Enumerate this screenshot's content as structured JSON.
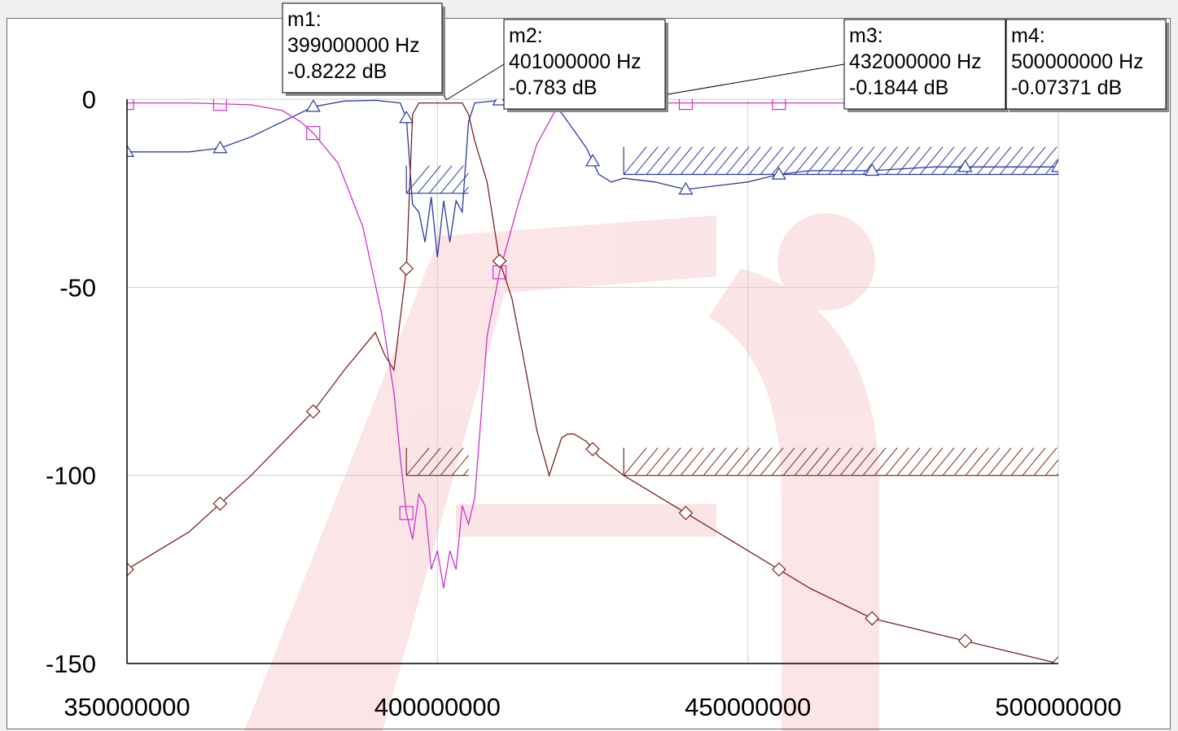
{
  "chart_data": {
    "type": "line",
    "x_unit": "Hz",
    "y_unit": "dB",
    "xlim": [
      350000000,
      500000000
    ],
    "ylim": [
      -150,
      0
    ],
    "xticks": [
      350000000,
      400000000,
      450000000,
      500000000
    ],
    "yticks": [
      0,
      -50,
      -100,
      -150
    ],
    "xtick_labels": [
      "350000000",
      "400000000",
      "450000000",
      "500000000"
    ],
    "ytick_labels": [
      "0",
      "-50",
      "-100",
      "-150"
    ],
    "grid": true,
    "series": [
      {
        "marker": "triangle",
        "color": "#2b3aa0",
        "x": [
          350000000,
          355000000,
          360000000,
          365000000,
          370000000,
          375000000,
          380000000,
          385000000,
          390000000,
          394000000,
          395000000,
          396000000,
          397000000,
          398000000,
          399000000,
          400000000,
          401000000,
          402000000,
          403000000,
          404000000,
          405000000,
          406000000,
          410000000,
          415000000,
          419000000,
          421000000,
          424000000,
          426000000,
          428000000,
          430000000,
          435000000,
          440000000,
          445000000,
          450000000,
          455000000,
          460000000,
          470000000,
          480000000,
          490000000,
          500000000
        ],
        "y": [
          -14,
          -14,
          -14,
          -13,
          -10,
          -6,
          -2,
          -0.5,
          -0.3,
          -1,
          -5,
          -28,
          -30,
          -38,
          -26,
          -42,
          -27,
          -38,
          -27,
          -30,
          -6,
          -1,
          -0.3,
          -0.2,
          -1.5,
          -6,
          -13,
          -20,
          -22,
          -21,
          -22,
          -24,
          -23,
          -22,
          -20,
          -19,
          -19,
          -18,
          -18,
          -18
        ]
      },
      {
        "marker": "square",
        "color": "#cc33cc",
        "x": [
          350000000,
          360000000,
          370000000,
          375000000,
          378000000,
          380000000,
          384000000,
          388000000,
          391000000,
          393000000,
          394000000,
          395000000,
          396000000,
          397000000,
          398000000,
          399000000,
          400000000,
          401000000,
          402000000,
          403000000,
          404000000,
          405000000,
          406000000,
          407000000,
          408000000,
          410000000,
          413000000,
          416000000,
          419000000,
          420000000,
          422000000,
          425000000,
          430000000,
          440000000,
          460000000,
          480000000,
          500000000
        ],
        "y": [
          -1,
          -1,
          -1.5,
          -3,
          -6,
          -9,
          -17,
          -34,
          -57,
          -78,
          -95,
          -110,
          -117,
          -105,
          -108,
          -125,
          -120,
          -130,
          -120,
          -125,
          -108,
          -113,
          -106,
          -85,
          -63,
          -46,
          -28,
          -12,
          -3,
          -1,
          -1,
          -1,
          -1,
          -1,
          -1,
          -1,
          -1
        ]
      },
      {
        "marker": "diamond",
        "color": "#7a2424",
        "x": [
          350000000,
          360000000,
          370000000,
          380000000,
          385000000,
          388000000,
          390000000,
          391500000,
          393000000,
          395000000,
          396000000,
          397000000,
          398000000,
          399000000,
          400000000,
          401000000,
          402000000,
          403000000,
          404000000,
          405000000,
          406000000,
          408000000,
          410000000,
          412000000,
          414000000,
          416000000,
          418000000,
          419000000,
          420000000,
          421000000,
          422000000,
          424000000,
          426000000,
          430000000,
          440000000,
          450000000,
          460000000,
          470000000,
          480000000,
          490000000,
          500000000
        ],
        "y": [
          -125,
          -115,
          -100,
          -83,
          -72,
          -66,
          -62,
          -68,
          -72,
          -45,
          -4,
          -1,
          -1,
          -1,
          -1,
          -1,
          -1,
          -1,
          -1,
          -4,
          -11,
          -22,
          -43,
          -53,
          -70,
          -88,
          -100,
          -95,
          -90,
          -89,
          -89,
          -91,
          -95,
          -100,
          -110,
          -120,
          -130,
          -138,
          -142,
          -146,
          -150
        ]
      }
    ],
    "masks": [
      {
        "x": [
          395000000,
          405000000
        ],
        "y": -25,
        "color": "#2b3aa0",
        "hatch": "above"
      },
      {
        "x": [
          430000000,
          500000000
        ],
        "y": -20,
        "color": "#2b3aa0",
        "hatch": "above"
      },
      {
        "x": [
          395000000,
          405000000
        ],
        "y": -100,
        "color": "#7a2424",
        "hatch": "above"
      },
      {
        "x": [
          430000000,
          500000000
        ],
        "y": -100,
        "color": "#7a2424",
        "hatch": "above"
      }
    ],
    "markers": [
      {
        "name": "m1:",
        "freq": "399000000 Hz",
        "value": "-0.8222 dB",
        "x": 399000000,
        "y": -0.8222
      },
      {
        "name": "m2:",
        "freq": "401000000 Hz",
        "value": "-0.783 dB",
        "x": 401000000,
        "y": -0.783
      },
      {
        "name": "m3:",
        "freq": "432000000 Hz",
        "value": "-0.1844 dB",
        "x": 432000000,
        "y": -0.1844
      },
      {
        "name": "m4:",
        "freq": "500000000 Hz",
        "value": "-0.07371 dB",
        "x": 500000000,
        "y": -0.07371
      }
    ]
  }
}
